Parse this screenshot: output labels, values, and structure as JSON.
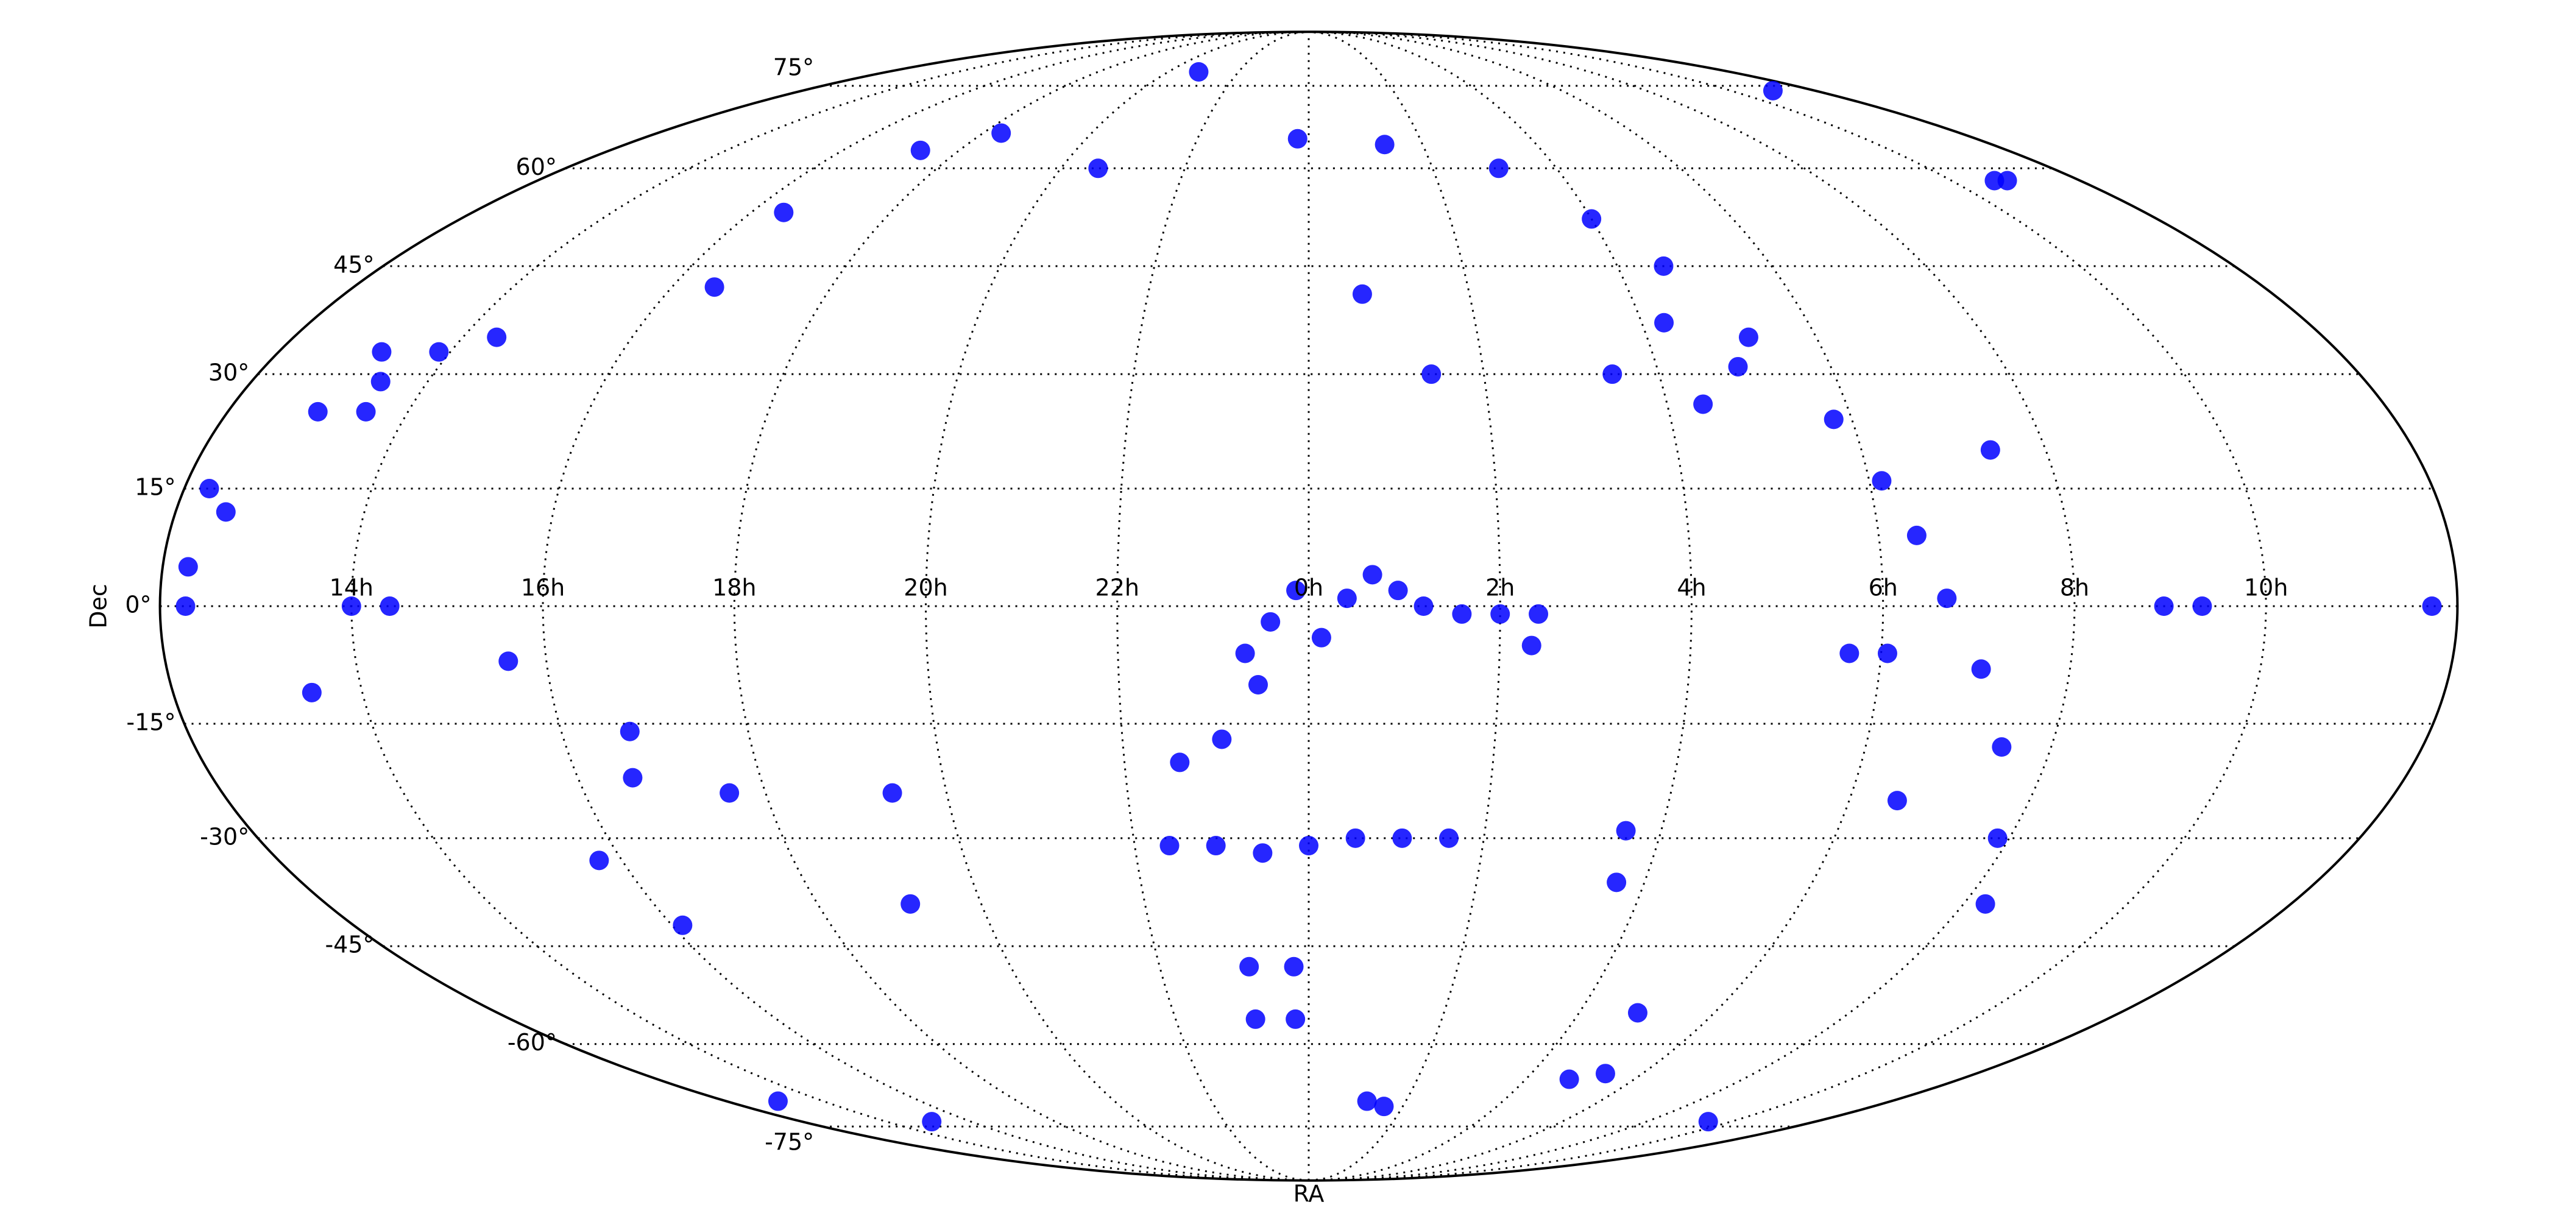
{
  "chart_data": {
    "type": "scatter",
    "projection": "mollweide",
    "xlabel": "RA",
    "ylabel": "Dec",
    "color": "#0000ff",
    "grid": true,
    "xlim": [
      -180,
      180
    ],
    "ylim": [
      -90,
      90
    ],
    "xticks": [
      {
        "value": -150,
        "label": "14h"
      },
      {
        "value": -120,
        "label": "16h"
      },
      {
        "value": -90,
        "label": "18h"
      },
      {
        "value": -60,
        "label": "20h"
      },
      {
        "value": -30,
        "label": "22h"
      },
      {
        "value": 0,
        "label": "0h"
      },
      {
        "value": 30,
        "label": "2h"
      },
      {
        "value": 60,
        "label": "4h"
      },
      {
        "value": 90,
        "label": "6h"
      },
      {
        "value": 120,
        "label": "8h"
      },
      {
        "value": 150,
        "label": "10h"
      }
    ],
    "yticks": [
      {
        "value": -75,
        "label": "-75°"
      },
      {
        "value": -60,
        "label": "-60°"
      },
      {
        "value": -45,
        "label": "-45°"
      },
      {
        "value": -30,
        "label": "-30°"
      },
      {
        "value": -15,
        "label": "-15°"
      },
      {
        "value": 0,
        "label": "0°"
      },
      {
        "value": 15,
        "label": "15°"
      },
      {
        "value": 30,
        "label": "30°"
      },
      {
        "value": 45,
        "label": "45°"
      },
      {
        "value": 60,
        "label": "60°"
      },
      {
        "value": 75,
        "label": "75°"
      }
    ],
    "x": [
      -10,
      -6,
      -2,
      2,
      6,
      10,
      14,
      -8,
      18,
      24,
      30,
      36,
      -24,
      -16,
      -8,
      0,
      8,
      16,
      24,
      -12,
      -3,
      -12,
      -3,
      18,
      24,
      72,
      80,
      -3,
      20,
      46,
      60,
      69,
      78,
      87,
      92,
      96,
      100,
      106,
      112,
      118,
      124,
      -165,
      -157,
      -162,
      -152,
      -158,
      -150,
      -144,
      -176,
      -172,
      -176,
      -176,
      134,
      140,
      176,
      10,
      35,
      55,
      54,
      73,
      163,
      160,
      165,
      -47,
      -100,
      -85,
      -113,
      -112,
      -144,
      111,
      85,
      91,
      66,
      64,
      52,
      74,
      98,
      -109,
      -111,
      -96,
      -73,
      -69,
      -14,
      -21,
      -126,
      -158,
      -118,
      -124,
      -164,
      -134,
      142,
      21,
      -51
    ],
    "y": [
      -6,
      -2,
      2,
      -4,
      1,
      4,
      2,
      -10,
      0,
      -1,
      -1,
      -1,
      -31,
      -31,
      -32,
      -31,
      -30,
      -30,
      -30,
      -48,
      -48,
      -56,
      -56,
      -70,
      -71,
      -66,
      -65,
      65,
      64,
      60,
      52,
      45,
      35,
      24,
      16,
      9,
      1,
      -8,
      -18,
      -30,
      -39,
      25,
      25,
      33,
      33,
      29,
      0,
      0,
      15,
      12,
      5,
      0,
      0,
      0,
      0,
      41,
      -5,
      -36,
      -29,
      -55,
      58,
      58,
      74,
      78,
      63,
      66,
      53,
      42,
      35,
      20,
      -6,
      -6,
      26,
      37,
      30,
      31,
      -25,
      -16,
      -22,
      -24,
      -39,
      -24,
      -17,
      -20,
      -7,
      -11,
      -42,
      -33,
      -70,
      -74,
      -74,
      30,
      60
    ]
  }
}
